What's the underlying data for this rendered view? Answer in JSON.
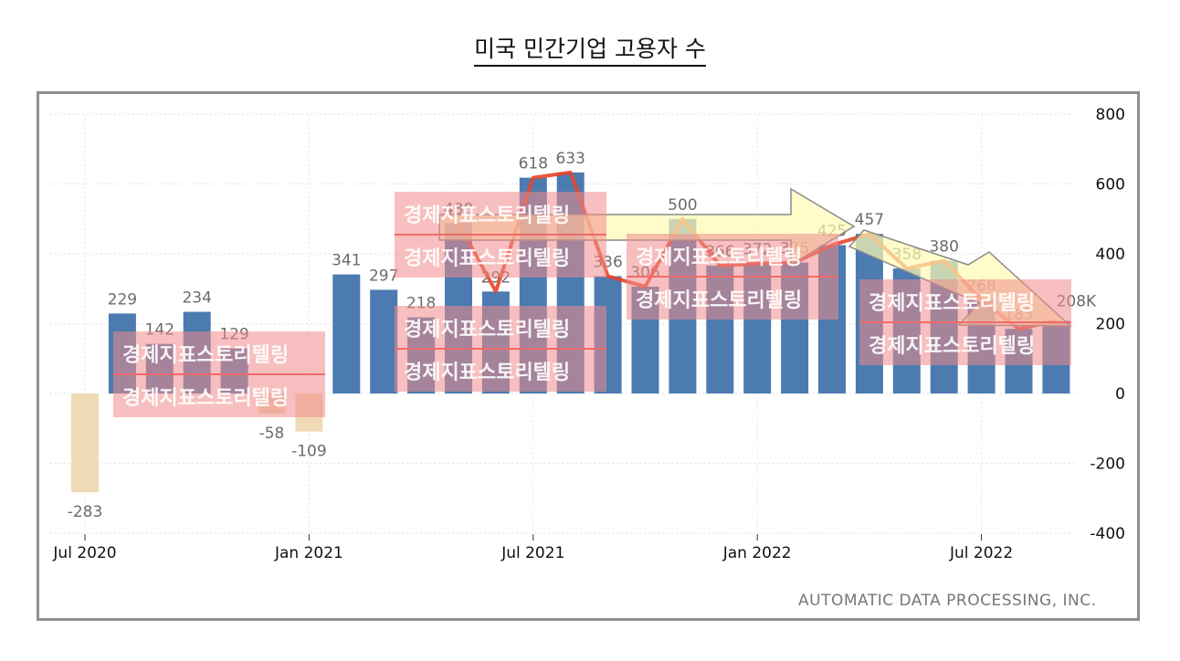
{
  "title": "미국 민간기업 고용자 수",
  "source": "AUTOMATIC DATA PROCESSING, INC.",
  "last_label": "208K",
  "watermark_text": "경제지표스토리텔링",
  "chart_data": {
    "type": "bar",
    "x": [
      "2020-07",
      "2020-08",
      "2020-09",
      "2020-10",
      "2020-11",
      "2020-12",
      "2021-01",
      "2021-02",
      "2021-03",
      "2021-04",
      "2021-05",
      "2021-06",
      "2021-07",
      "2021-08",
      "2021-09",
      "2021-10",
      "2021-11",
      "2021-12",
      "2022-01",
      "2022-02",
      "2022-03",
      "2022-04",
      "2022-05",
      "2022-06",
      "2022-07",
      "2022-08",
      "2022-09"
    ],
    "values": [
      -283,
      229,
      142,
      234,
      129,
      -58,
      -109,
      341,
      297,
      218,
      488,
      292,
      618,
      633,
      336,
      306,
      500,
      366,
      372,
      375,
      425,
      457,
      358,
      380,
      268,
      185,
      208
    ],
    "data_labels": [
      "-283",
      "229",
      "142",
      "234",
      "129",
      "-58",
      "-109",
      "341",
      "297",
      "218",
      "488",
      "292",
      "618",
      "633",
      "336",
      "306",
      "500",
      "366",
      "372",
      "375",
      "425",
      "457",
      "358",
      "380",
      "268",
      "185",
      "208K"
    ],
    "x_ticks": [
      "Jul 2020",
      "Jan 2021",
      "Jul 2021",
      "Jan 2022",
      "Jul 2022"
    ],
    "y_ticks": [
      "800",
      "600",
      "400",
      "200",
      "0",
      "-200",
      "-400"
    ],
    "ylim": [
      -400,
      800
    ],
    "grid": true,
    "colors": {
      "positive": "#4b7bb0",
      "negative": "#f0dab6",
      "trend_line": "#e8452a",
      "arrow_fill": "#fffbb3",
      "arrow_stroke": "#8a8a8a",
      "watermark_box": "#f08a8a"
    }
  }
}
